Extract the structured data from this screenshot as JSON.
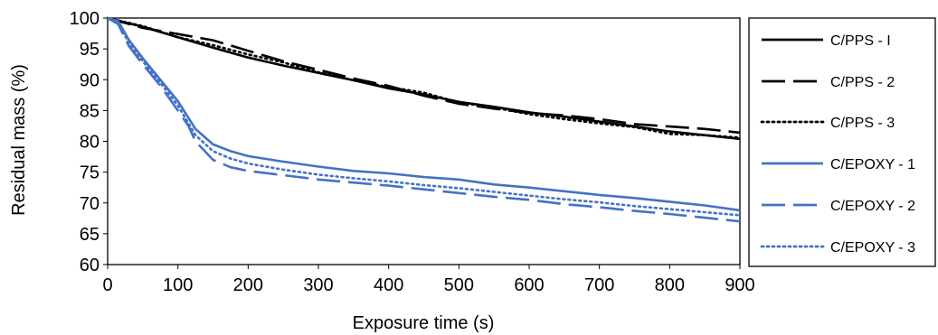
{
  "chart_data": {
    "type": "line",
    "title": "",
    "xlabel": "Exposure time (s)",
    "ylabel": "Residual mass (%)",
    "xlim": [
      0,
      900
    ],
    "ylim": [
      60,
      100
    ],
    "xticks": [
      0,
      100,
      200,
      300,
      400,
      500,
      600,
      700,
      800,
      900
    ],
    "yticks": [
      60,
      65,
      70,
      75,
      80,
      85,
      90,
      95,
      100
    ],
    "grid": false,
    "legend_position": "right",
    "colors": {
      "black": "#000000",
      "blue": "#4472C4"
    },
    "series": [
      {
        "name": "C/PPS - I",
        "color": "#000000",
        "dash": "solid",
        "x": [
          0,
          50,
          100,
          150,
          200,
          250,
          300,
          350,
          400,
          450,
          500,
          550,
          600,
          650,
          700,
          750,
          800,
          850,
          900
        ],
        "y": [
          100,
          98.6,
          96.9,
          95.2,
          93.6,
          92.3,
          91.1,
          89.9,
          88.6,
          87.6,
          86.4,
          85.6,
          84.7,
          84.0,
          83.2,
          82.4,
          81.6,
          81.0,
          80.4
        ]
      },
      {
        "name": "C/PPS - 2",
        "color": "#000000",
        "dash": "long",
        "x": [
          0,
          50,
          100,
          150,
          200,
          250,
          300,
          350,
          400,
          450,
          500,
          550,
          600,
          650,
          700,
          750,
          800,
          850,
          900
        ],
        "y": [
          100,
          98.4,
          97.4,
          96.4,
          94.7,
          93.0,
          91.6,
          90.2,
          89.0,
          87.4,
          86.1,
          85.3,
          84.6,
          84.2,
          83.6,
          82.8,
          82.4,
          82.0,
          81.4
        ]
      },
      {
        "name": "C/PPS - 3",
        "color": "#000000",
        "dash": "dot",
        "x": [
          0,
          50,
          100,
          150,
          200,
          250,
          300,
          350,
          400,
          450,
          500,
          550,
          600,
          650,
          700,
          750,
          800,
          850,
          900
        ],
        "y": [
          100,
          98.7,
          96.9,
          95.6,
          94.1,
          92.8,
          91.2,
          89.9,
          88.8,
          87.9,
          86.3,
          85.5,
          84.4,
          83.6,
          82.9,
          82.3,
          81.2,
          81.0,
          80.6
        ]
      },
      {
        "name": "C/EPOXY - 1",
        "color": "#4472C4",
        "dash": "solid",
        "x": [
          0,
          15,
          30,
          50,
          75,
          100,
          125,
          150,
          175,
          200,
          250,
          300,
          350,
          400,
          450,
          500,
          550,
          600,
          650,
          700,
          750,
          800,
          850,
          900
        ],
        "y": [
          100,
          99.5,
          96.5,
          93.5,
          90.0,
          86.5,
          82.0,
          79.5,
          78.4,
          77.6,
          76.7,
          75.9,
          75.2,
          74.8,
          74.2,
          73.8,
          73.0,
          72.5,
          71.9,
          71.3,
          70.8,
          70.2,
          69.6,
          68.8
        ]
      },
      {
        "name": "C/EPOXY - 2",
        "color": "#4472C4",
        "dash": "long",
        "x": [
          0,
          15,
          30,
          50,
          75,
          100,
          115,
          125,
          150,
          175,
          200,
          250,
          300,
          350,
          400,
          450,
          500,
          550,
          600,
          650,
          700,
          750,
          800,
          850,
          900
        ],
        "y": [
          100,
          99.0,
          95.5,
          92.5,
          89.0,
          85.0,
          82.5,
          80.0,
          77.0,
          75.8,
          75.2,
          74.5,
          73.8,
          73.3,
          72.8,
          72.2,
          71.6,
          71.0,
          70.5,
          69.8,
          69.3,
          68.7,
          68.2,
          67.6,
          67.0
        ]
      },
      {
        "name": "C/EPOXY - 3",
        "color": "#4472C4",
        "dash": "dot",
        "x": [
          0,
          15,
          30,
          50,
          75,
          100,
          125,
          150,
          175,
          200,
          250,
          300,
          350,
          400,
          450,
          500,
          550,
          600,
          650,
          700,
          750,
          800,
          850,
          900
        ],
        "y": [
          100,
          99.2,
          96.0,
          93.0,
          89.5,
          85.8,
          81.0,
          78.4,
          77.2,
          76.4,
          75.4,
          74.6,
          74.0,
          73.5,
          72.9,
          72.4,
          71.8,
          71.2,
          70.6,
          70.1,
          69.5,
          69.0,
          68.5,
          68.0
        ]
      }
    ]
  }
}
